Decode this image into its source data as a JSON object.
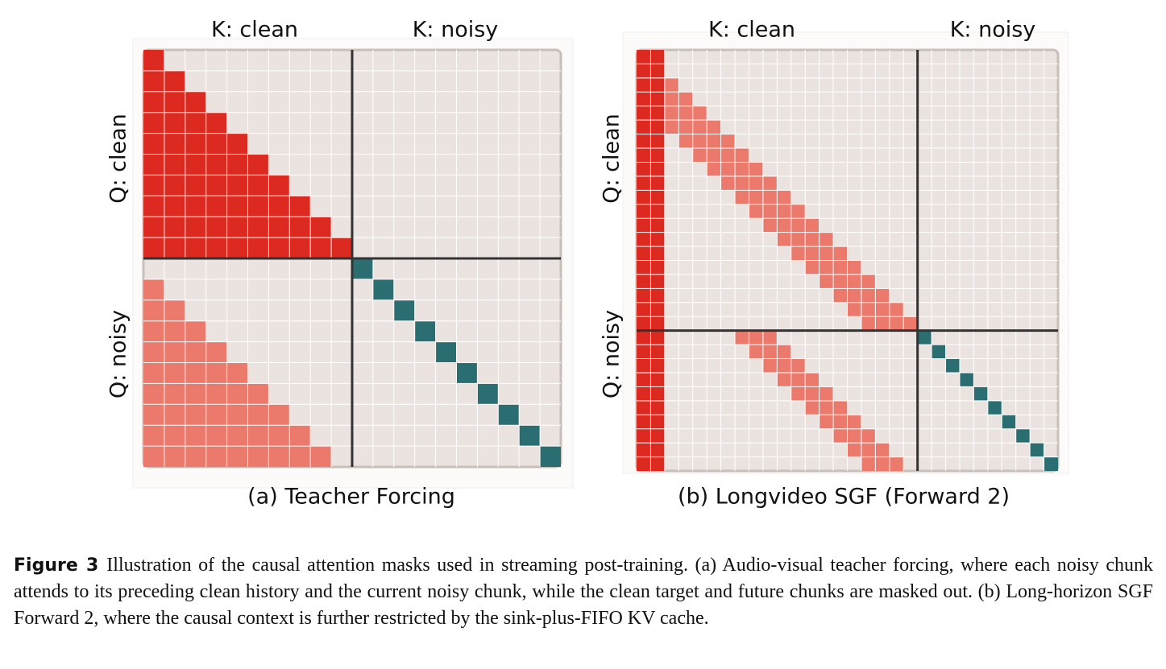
{
  "panels": [
    {
      "caption": "(a) Teacher Forcing",
      "col_labels": [
        "K: clean",
        "K: noisy"
      ],
      "row_labels": [
        "Q: clean",
        "Q: noisy"
      ]
    },
    {
      "caption": "(b) Longvideo SGF (Forward 2)",
      "col_labels": [
        "K: clean",
        "K: noisy"
      ],
      "row_labels": [
        "Q: clean",
        "Q: noisy"
      ]
    }
  ],
  "caption": {
    "label": "Figure 3",
    "text": "Illustration of the causal attention masks used in streaming post-training. (a) Audio-visual teacher forcing, where each noisy chunk attends to its preceding clean history and the current noisy chunk, while the clean target and future chunks are masked out. (b) Long-horizon SGF Forward 2, where the causal context is further restricted by the sink-plus-FIFO KV cache."
  }
}
